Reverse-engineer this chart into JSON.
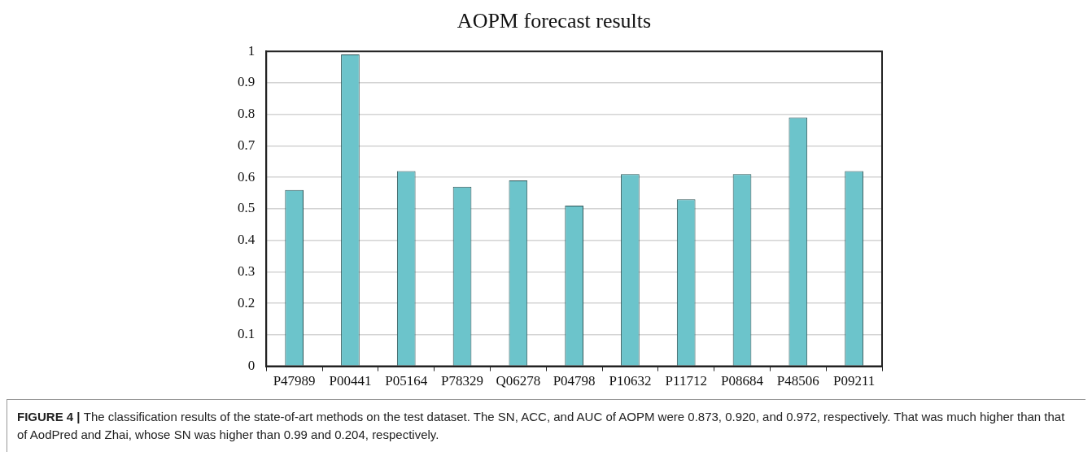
{
  "chart_data": {
    "type": "bar",
    "title": "AOPM forecast results",
    "categories": [
      "P47989",
      "P00441",
      "P05164",
      "P78329",
      "Q06278",
      "P04798",
      "P10632",
      "P11712",
      "P08684",
      "P48506",
      "P09211"
    ],
    "values": [
      0.56,
      0.99,
      0.62,
      0.57,
      0.59,
      0.51,
      0.61,
      0.53,
      0.61,
      0.79,
      0.62
    ],
    "color": "#6cc4cb",
    "ylim": [
      0,
      1
    ],
    "yticks": [
      0,
      0.1,
      0.2,
      0.3,
      0.4,
      0.5,
      0.6,
      0.7,
      0.8,
      0.9,
      1
    ],
    "grid": "y",
    "annotations": [
      "FIGURE 4 |",
      "The classification results of the state-of-art methods on the test dataset. The SN, ACC, and AUC of AOPM were 0.873, 0.920, and 0.972, respectively. That was much higher than that of AodPred and Zhai, whose SN was higher than 0.99 and 0.204, respectively."
    ]
  }
}
